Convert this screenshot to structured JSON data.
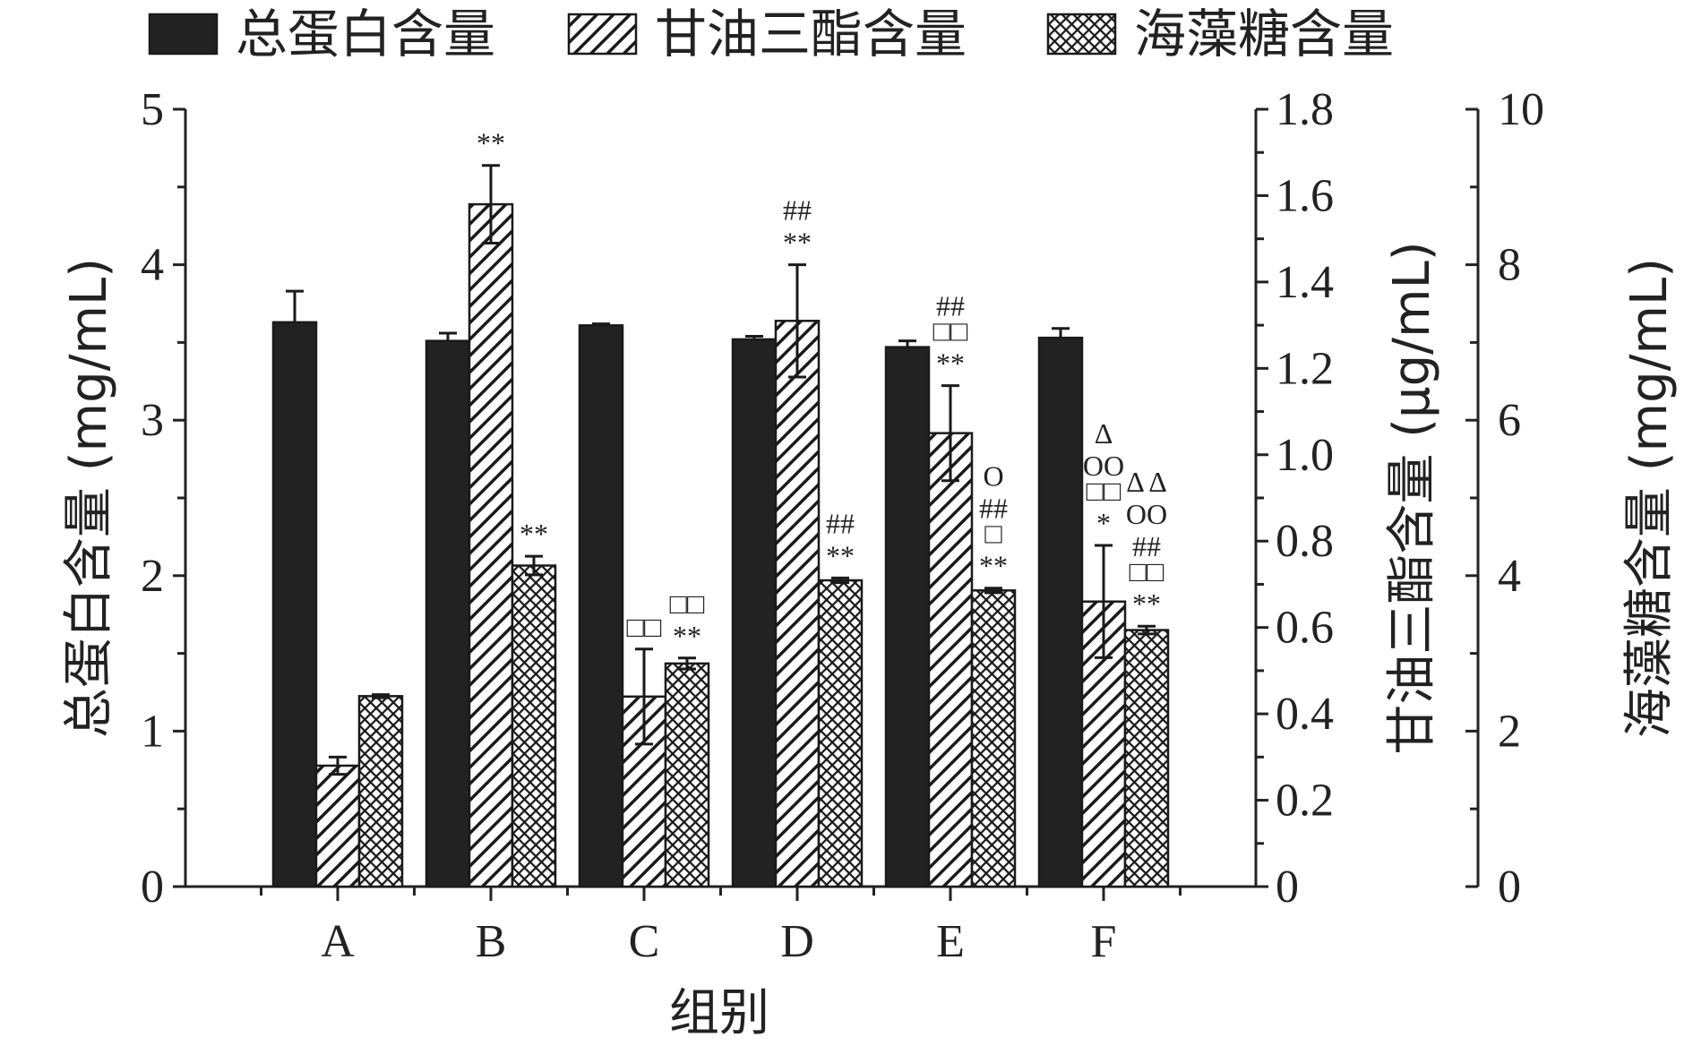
{
  "chart_data": {
    "type": "bar",
    "xlabel": "组别",
    "categories": [
      "A",
      "B",
      "C",
      "D",
      "E",
      "F"
    ],
    "axes": {
      "left": {
        "label": "总蛋白含量 (mg/mL)",
        "ylim": [
          0,
          5
        ],
        "ticks": [
          "0",
          "1",
          "2",
          "3",
          "4",
          "5"
        ]
      },
      "right1": {
        "label": "甘油三酯含量 (μg/mL)",
        "ylim": [
          0,
          1.8
        ],
        "ticks": [
          "0",
          "0.2",
          "0.4",
          "0.6",
          "0.8",
          "1.0",
          "1.2",
          "1.4",
          "1.6",
          "1.8"
        ]
      },
      "right2": {
        "label": "海藻糖含量 (mg/mL)",
        "ylim": [
          0,
          10
        ],
        "ticks": [
          "0",
          "2",
          "4",
          "6",
          "8",
          "10"
        ]
      }
    },
    "legend_position": "top",
    "series": [
      {
        "name": "总蛋白含量",
        "axis": "left",
        "pattern": "solid",
        "color": "#222222",
        "values": [
          3.63,
          3.51,
          3.61,
          3.52,
          3.47,
          3.53
        ],
        "errors": [
          0.2,
          0.05,
          0.01,
          0.02,
          0.04,
          0.06
        ],
        "annotations": [
          [],
          [],
          [],
          [],
          [],
          []
        ]
      },
      {
        "name": "甘油三酯含量",
        "axis": "right1",
        "pattern": "hatch",
        "color": "#222222",
        "values": [
          0.28,
          1.58,
          0.44,
          1.31,
          1.05,
          0.66
        ],
        "errors": [
          0.02,
          0.09,
          0.11,
          0.13,
          0.11,
          0.13
        ],
        "annotations": [
          [],
          [
            "**"
          ],
          [
            "□□"
          ],
          [
            "##",
            "**"
          ],
          [
            "##",
            "□□",
            "**"
          ],
          [
            "Δ",
            "OO",
            "□□",
            "*"
          ]
        ]
      },
      {
        "name": "海藻糖含量",
        "axis": "right2",
        "pattern": "crosshatch",
        "color": "#222222",
        "values": [
          2.45,
          4.13,
          2.87,
          3.94,
          3.81,
          3.3
        ],
        "errors": [
          0.02,
          0.12,
          0.07,
          0.03,
          0.03,
          0.05
        ],
        "annotations": [
          [],
          [
            "**"
          ],
          [
            "□□",
            "**"
          ],
          [
            "##",
            "**"
          ],
          [
            "O",
            "##",
            "□",
            "**"
          ],
          [
            "Δ Δ",
            "OO",
            "##",
            "□□",
            "**"
          ]
        ]
      }
    ]
  }
}
